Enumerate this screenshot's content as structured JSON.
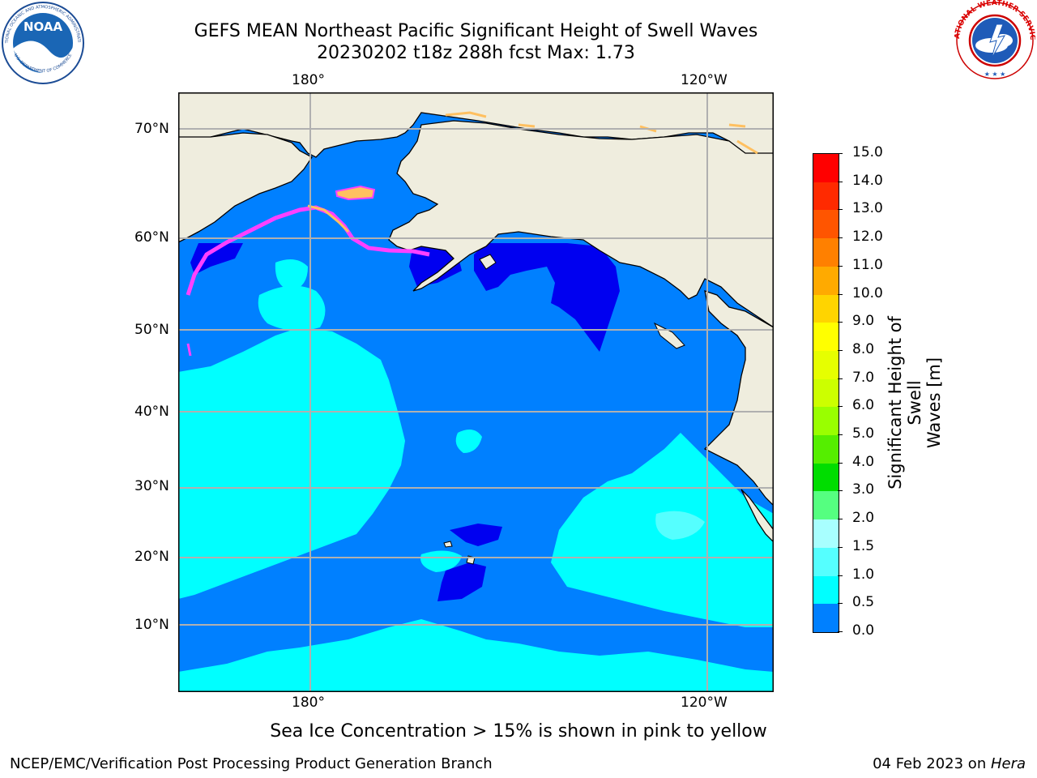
{
  "title_line1": "GEFS MEAN Northeast Pacific Significant Height of Swell Waves",
  "title_line2": "20230202 t18z 288h fcst   Max: 1.73",
  "lon_labels": [
    "180°",
    "120°W"
  ],
  "lat_labels": [
    "70°N",
    "60°N",
    "50°N",
    "40°N",
    "30°N",
    "20°N",
    "10°N"
  ],
  "colorbar": {
    "label_line1": "Significant Height of Swell",
    "label_line2": "Waves [m]",
    "ticks": [
      "15.0",
      "14.0",
      "13.0",
      "12.0",
      "11.0",
      "10.0",
      "9.0",
      "8.0",
      "7.0",
      "6.0",
      "5.0",
      "4.0",
      "3.0",
      "2.0",
      "1.5",
      "1.0",
      "0.5",
      "0.0"
    ],
    "colors": [
      "#ff0000",
      "#ff2a00",
      "#ff5500",
      "#ff8000",
      "#ffaa00",
      "#ffd400",
      "#ffff00",
      "#e6ff00",
      "#ccff00",
      "#99ff00",
      "#55ee00",
      "#00dd00",
      "#55ff80",
      "#a8ffff",
      "#55ffff",
      "#00ffff",
      "#0080ff",
      "#0000ff"
    ]
  },
  "caption": "Sea Ice Concentration > 15% is shown in pink to yellow",
  "footer_left": "NCEP/EMC/Verification Post Processing Product Generation Branch",
  "footer_right_prefix": "04 Feb 2023 on ",
  "footer_right_host": "Hera",
  "logo_left": "NOAA",
  "logo_left_ring": "NATIONAL OCEANIC AND ATMOSPHERIC ADMINISTRATION",
  "logo_left_ring_bottom": "U.S. DEPARTMENT OF COMMERCE",
  "logo_right_ring": "NATIONAL WEATHER SERVICE",
  "colors": {
    "land": "#efedde",
    "ocean_dark": "#0000f0",
    "ocean_mid": "#0080ff",
    "ocean_light": "#00ffff",
    "ocean_lighter": "#55ffff",
    "ice_pink": "#ff40ff",
    "ice_orange": "#ffc060",
    "grid": "#b0b0b0"
  }
}
